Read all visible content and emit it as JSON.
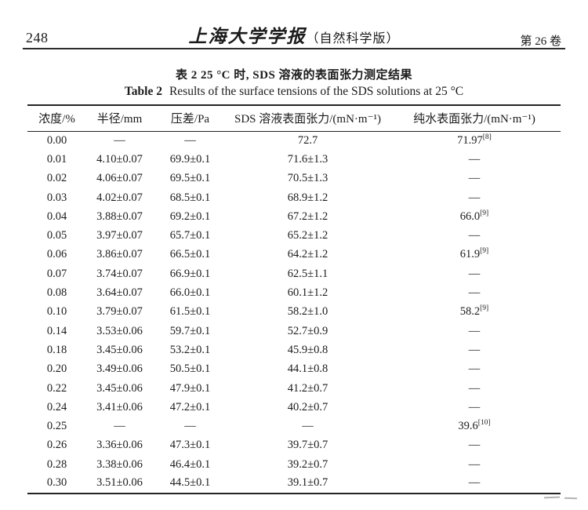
{
  "page": {
    "page_number": "248",
    "journal_title": "上海大学学报",
    "journal_edition": "（自然科学版）",
    "volume": "第 26 卷"
  },
  "caption": {
    "zh": "表 2  25 °C 时, SDS 溶液的表面张力测定结果",
    "en_label": "Table 2",
    "en_text": "Results of the surface tensions of the SDS solutions at 25 °C"
  },
  "table": {
    "headers": [
      "浓度/%",
      "半径/mm",
      "压差/Pa",
      "SDS 溶液表面张力/(mN·m⁻¹)",
      "纯水表面张力/(mN·m⁻¹)"
    ],
    "rows": [
      [
        "0.00",
        "—",
        "—",
        "72.7",
        {
          "t": "71.97",
          "s": "[8]"
        }
      ],
      [
        "0.01",
        "4.10±0.07",
        "69.9±0.1",
        "71.6±1.3",
        "—"
      ],
      [
        "0.02",
        "4.06±0.07",
        "69.5±0.1",
        "70.5±1.3",
        "—"
      ],
      [
        "0.03",
        "4.02±0.07",
        "68.5±0.1",
        "68.9±1.2",
        "—"
      ],
      [
        "0.04",
        "3.88±0.07",
        "69.2±0.1",
        "67.2±1.2",
        {
          "t": "66.0",
          "s": "[9]"
        }
      ],
      [
        "0.05",
        "3.97±0.07",
        "65.7±0.1",
        "65.2±1.2",
        "—"
      ],
      [
        "0.06",
        "3.86±0.07",
        "66.5±0.1",
        "64.2±1.2",
        {
          "t": "61.9",
          "s": "[9]"
        }
      ],
      [
        "0.07",
        "3.74±0.07",
        "66.9±0.1",
        "62.5±1.1",
        "—"
      ],
      [
        "0.08",
        "3.64±0.07",
        "66.0±0.1",
        "60.1±1.2",
        "—"
      ],
      [
        "0.10",
        "3.79±0.07",
        "61.5±0.1",
        "58.2±1.0",
        {
          "t": "58.2",
          "s": "[9]"
        }
      ],
      [
        "0.14",
        "3.53±0.06",
        "59.7±0.1",
        "52.7±0.9",
        "—"
      ],
      [
        "0.18",
        "3.45±0.06",
        "53.2±0.1",
        "45.9±0.8",
        "—"
      ],
      [
        "0.20",
        "3.49±0.06",
        "50.5±0.1",
        "44.1±0.8",
        "—"
      ],
      [
        "0.22",
        "3.45±0.06",
        "47.9±0.1",
        "41.2±0.7",
        "—"
      ],
      [
        "0.24",
        "3.41±0.06",
        "47.2±0.1",
        "40.2±0.7",
        "—"
      ],
      [
        "0.25",
        "—",
        "—",
        "—",
        {
          "t": "39.6",
          "s": "[10]"
        }
      ],
      [
        "0.26",
        "3.36±0.06",
        "47.3±0.1",
        "39.7±0.7",
        "—"
      ],
      [
        "0.28",
        "3.38±0.06",
        "46.4±0.1",
        "39.2±0.7",
        "—"
      ],
      [
        "0.30",
        "3.51±0.06",
        "44.5±0.1",
        "39.1±0.7",
        "—"
      ]
    ]
  }
}
